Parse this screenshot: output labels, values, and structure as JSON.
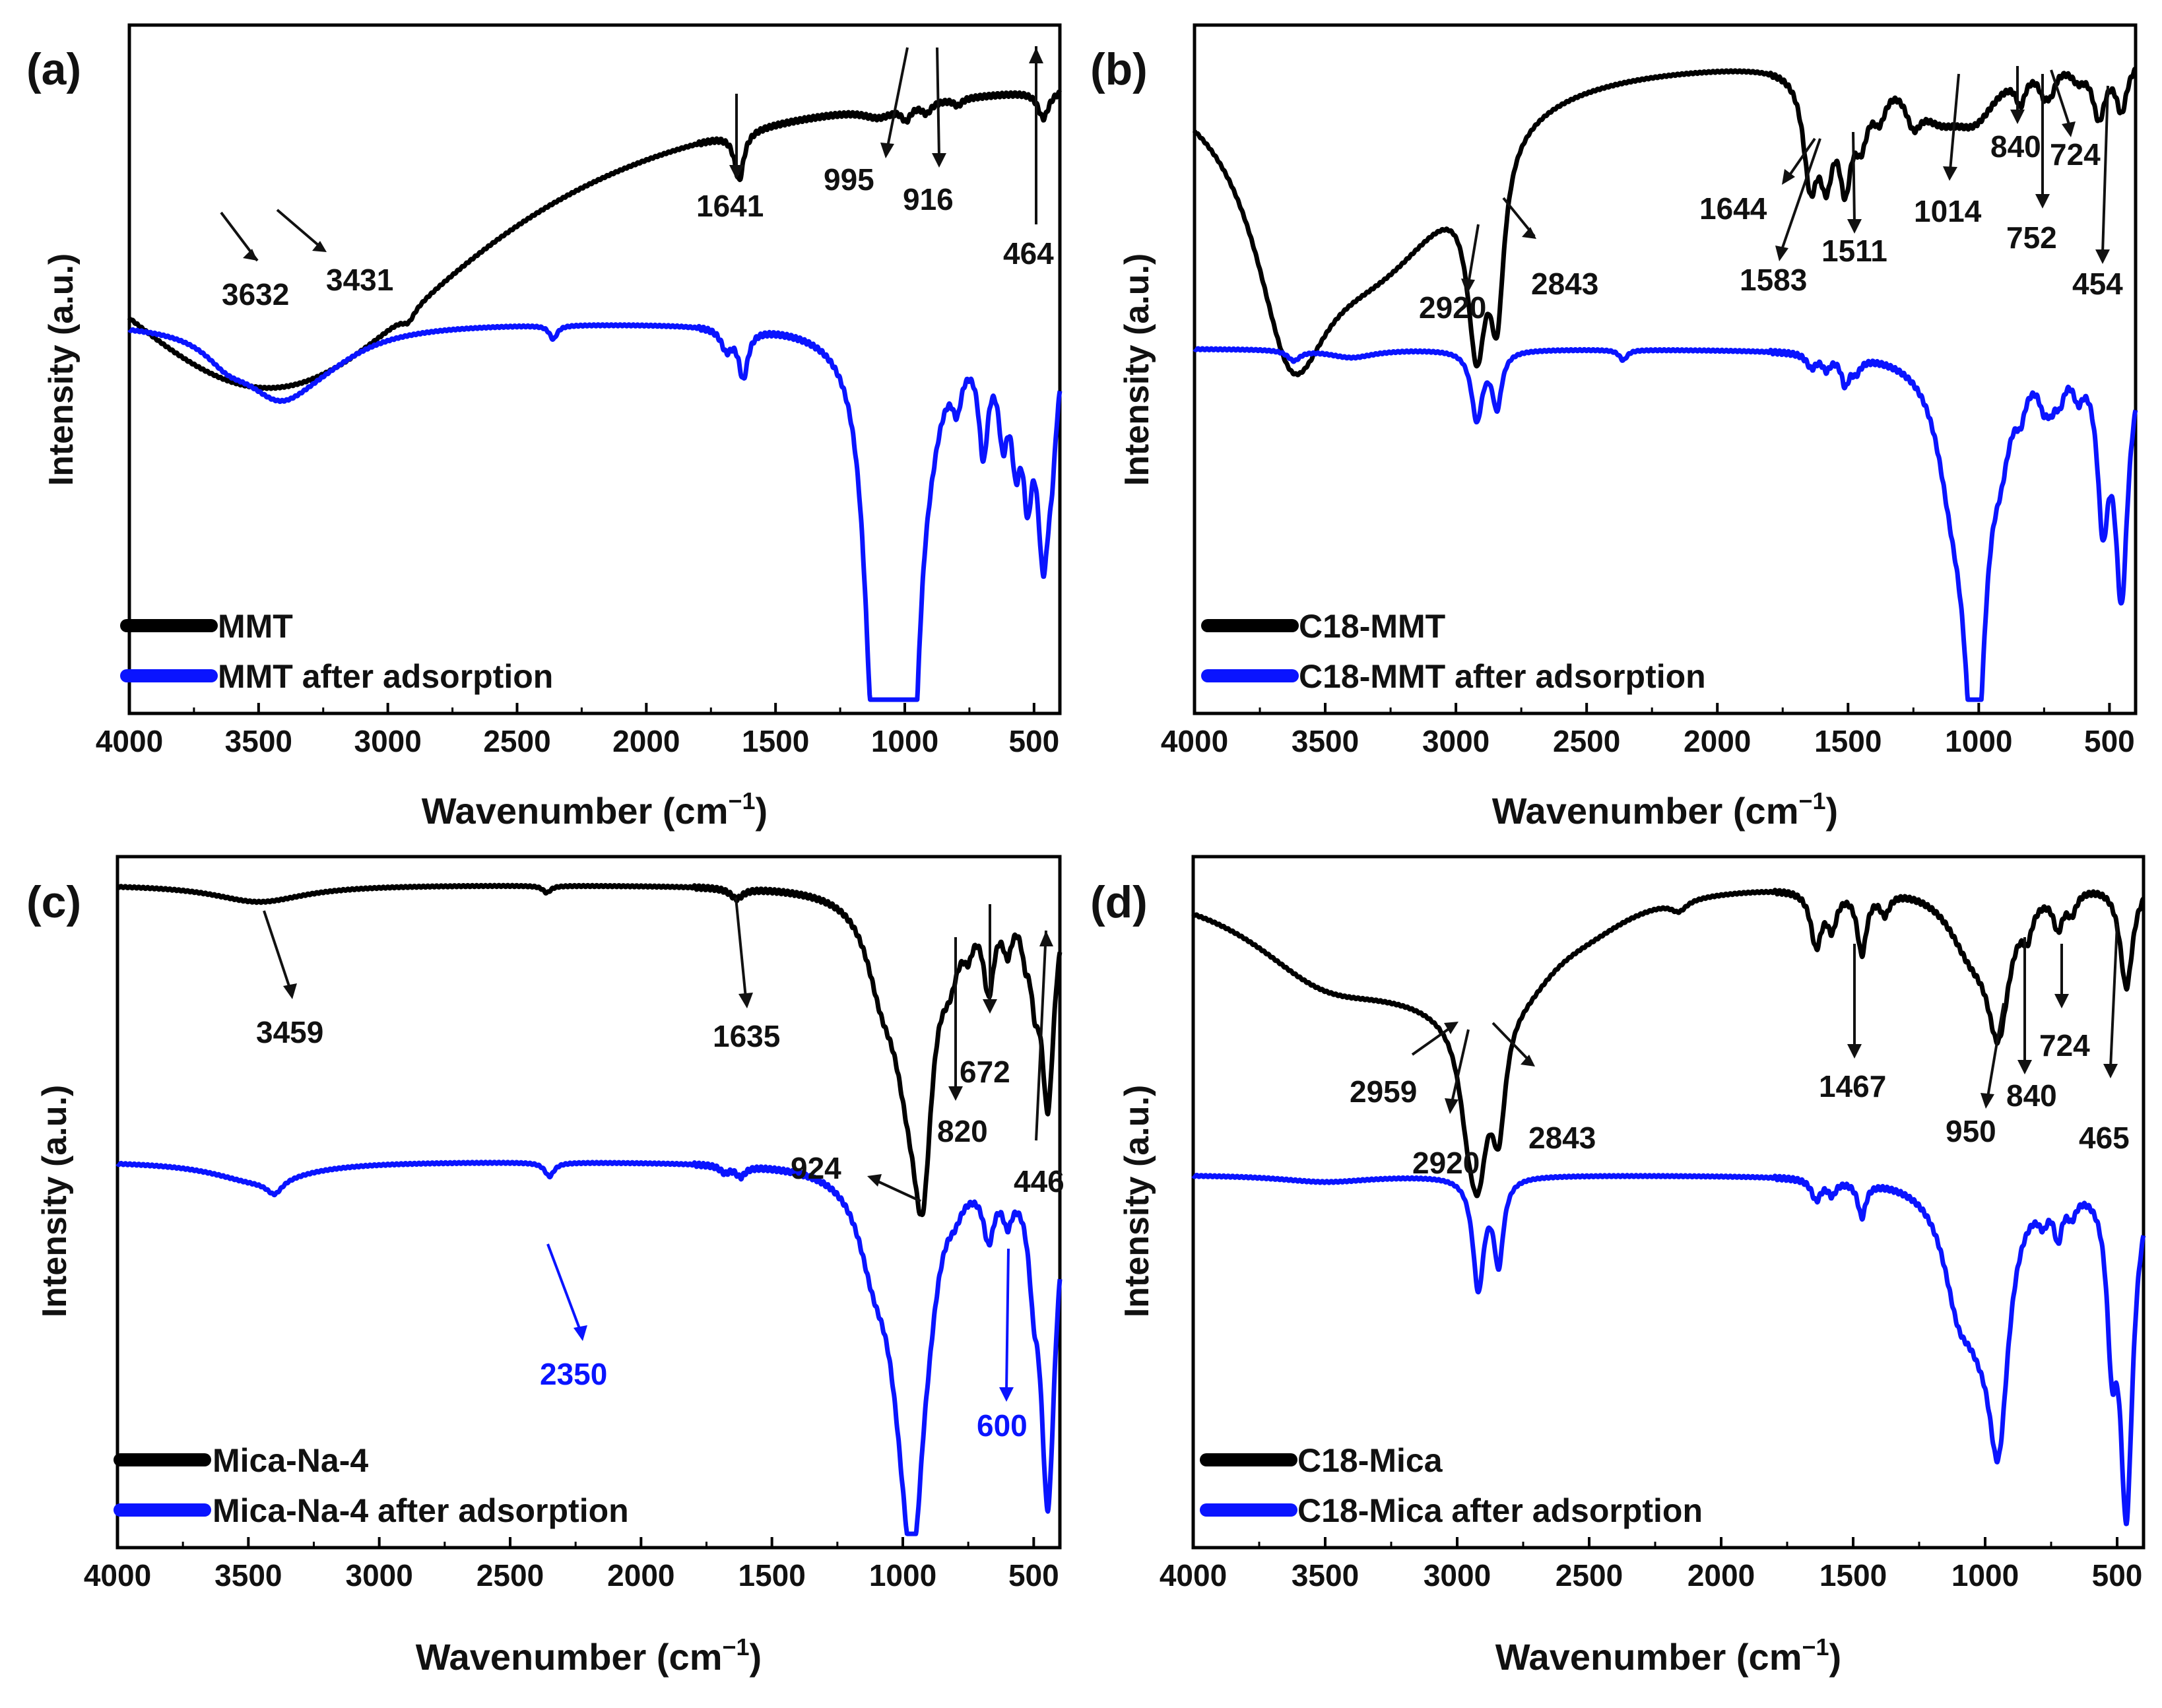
{
  "colors": {
    "before": "#000000",
    "after": "#0a14ff",
    "axis": "#000000"
  },
  "shared": {
    "xlabel": "Wavenumber (cm",
    "xlabel_sup": "−1",
    "xlabel_end": ")",
    "ylabel": "Intensity (a.u.)",
    "xlim": [
      4000,
      400
    ],
    "ticks": [
      "4000",
      "3500",
      "3000",
      "2500",
      "2000",
      "1500",
      "1000",
      "500"
    ]
  },
  "chart_data": [
    {
      "type": "line",
      "panel_label": "(a)",
      "title": "",
      "xlabel": "Wavenumber (cm−1)",
      "ylabel": "Intensity (a.u.)",
      "xlim": [
        4000,
        400
      ],
      "series": [
        {
          "name": "MMT",
          "color": "#000000",
          "baseline": 0.05,
          "bands": [
            [
              3632,
              0.22,
              0.28
            ],
            [
              3431,
              0.17,
              0.28
            ],
            [
              3250,
              0.1,
              0.22
            ],
            [
              2920,
              0.015,
              0.008
            ],
            [
              1641,
              0.07,
              0.006
            ],
            [
              1100,
              0.015,
              0.02
            ],
            [
              995,
              0.02,
              0.006
            ],
            [
              916,
              0.015,
              0.006
            ],
            [
              795,
              0.01,
              0.005
            ],
            [
              464,
              0.04,
              0.007
            ]
          ]
        },
        {
          "name": "MMT after adsorption",
          "color": "#0a14ff",
          "baseline": 0.43,
          "bands": [
            [
              3620,
              0.03,
              0.03
            ],
            [
              3420,
              0.09,
              0.05
            ],
            [
              3250,
              0.03,
              0.06
            ],
            [
              2360,
              0.02,
              0.005
            ],
            [
              1690,
              0.03,
              0.007
            ],
            [
              1625,
              0.07,
              0.006
            ],
            [
              1120,
              0.48,
              0.012
            ],
            [
              1030,
              0.5,
              0.012
            ],
            [
              985,
              0.6,
              0.012
            ],
            [
              900,
              0.05,
              0.015
            ],
            [
              798,
              0.06,
              0.006
            ],
            [
              696,
              0.15,
              0.006
            ],
            [
              620,
              0.12,
              0.006
            ],
            [
              570,
              0.14,
              0.006
            ],
            [
              525,
              0.18,
              0.006
            ],
            [
              464,
              0.3,
              0.008
            ],
            [
              430,
              0.1,
              0.006
            ]
          ]
        }
      ],
      "annotations": [
        "3632",
        "3431",
        "1641",
        "995",
        "916",
        "464"
      ],
      "legend": {
        "position": "bottom-left"
      }
    },
    {
      "type": "line",
      "panel_label": "(b)",
      "title": "",
      "xlabel": "Wavenumber (cm−1)",
      "ylabel": "Intensity (a.u.)",
      "xlim": [
        4000,
        400
      ],
      "series": [
        {
          "name": "C18-MMT",
          "color": "#000000",
          "baseline": 0.04,
          "bands": [
            [
              3632,
              0.28,
              0.045
            ],
            [
              3440,
              0.17,
              0.1
            ],
            [
              3250,
              0.1,
              0.08
            ],
            [
              3050,
              0.06,
              0.08
            ],
            [
              2920,
              0.26,
              0.012
            ],
            [
              2843,
              0.22,
              0.009
            ],
            [
              1644,
              0.15,
              0.009
            ],
            [
              1583,
              0.13,
              0.009
            ],
            [
              1511,
              0.14,
              0.008
            ],
            [
              1450,
              0.08,
              0.009
            ],
            [
              1380,
              0.05,
              0.009
            ],
            [
              1250,
              0.05,
              0.01
            ],
            [
              1150,
              0.06,
              0.03
            ],
            [
              1014,
              0.07,
              0.03
            ],
            [
              840,
              0.04,
              0.006
            ],
            [
              752,
              0.03,
              0.006
            ],
            [
              724,
              0.03,
              0.006
            ],
            [
              620,
              0.02,
              0.008
            ],
            [
              540,
              0.08,
              0.008
            ],
            [
              454,
              0.07,
              0.007
            ]
          ]
        },
        {
          "name": "C18-MMT after adsorption",
          "color": "#0a14ff",
          "baseline": 0.47,
          "bands": [
            [
              3620,
              0.015,
              0.008
            ],
            [
              3400,
              0.012,
              0.03
            ],
            [
              2920,
              0.1,
              0.007
            ],
            [
              2843,
              0.08,
              0.006
            ],
            [
              2360,
              0.015,
              0.005
            ],
            [
              1640,
              0.02,
              0.006
            ],
            [
              1583,
              0.02,
              0.005
            ],
            [
              1511,
              0.04,
              0.005
            ],
            [
              1470,
              0.02,
              0.006
            ],
            [
              1100,
              0.15,
              0.02
            ],
            [
              1014,
              0.56,
              0.013
            ],
            [
              915,
              0.08,
              0.012
            ],
            [
              840,
              0.04,
              0.006
            ],
            [
              752,
              0.04,
              0.006
            ],
            [
              724,
              0.04,
              0.006
            ],
            [
              690,
              0.04,
              0.006
            ],
            [
              620,
              0.04,
              0.006
            ],
            [
              525,
              0.22,
              0.007
            ],
            [
              454,
              0.34,
              0.008
            ]
          ]
        }
      ],
      "annotations": [
        "2920",
        "2843",
        "1644",
        "1583",
        "1511",
        "1014",
        "840",
        "752",
        "724",
        "454"
      ],
      "legend": {
        "position": "bottom-left"
      }
    },
    {
      "type": "line",
      "panel_label": "(c)",
      "title": "",
      "xlabel": "Wavenumber (cm−1)",
      "ylabel": "Intensity (a.u.)",
      "xlim": [
        4000,
        400
      ],
      "series": [
        {
          "name": "Mica-Na-4",
          "color": "#000000",
          "baseline": 0.04,
          "bands": [
            [
              3459,
              0.025,
              0.06
            ],
            [
              2360,
              0.01,
              0.005
            ],
            [
              1635,
              0.015,
              0.008
            ],
            [
              1080,
              0.1,
              0.02
            ],
            [
              980,
              0.2,
              0.02
            ],
            [
              924,
              0.32,
              0.012
            ],
            [
              820,
              0.07,
              0.012
            ],
            [
              750,
              0.04,
              0.006
            ],
            [
              672,
              0.12,
              0.007
            ],
            [
              600,
              0.06,
              0.006
            ],
            [
              532,
              0.05,
              0.005
            ],
            [
              495,
              0.1,
              0.006
            ],
            [
              446,
              0.3,
              0.008
            ]
          ]
        },
        {
          "name": "Mica-Na-4 after adsorption",
          "color": "#0a14ff",
          "baseline": 0.44,
          "bands": [
            [
              3459,
              0.03,
              0.06
            ],
            [
              3400,
              0.02,
              0.01
            ],
            [
              2350,
              0.02,
              0.006
            ],
            [
              1680,
              0.01,
              0.006
            ],
            [
              1620,
              0.015,
              0.006
            ],
            [
              1110,
              0.1,
              0.02
            ],
            [
              1000,
              0.2,
              0.02
            ],
            [
              960,
              0.38,
              0.014
            ],
            [
              900,
              0.06,
              0.012
            ],
            [
              800,
              0.02,
              0.008
            ],
            [
              672,
              0.08,
              0.007
            ],
            [
              600,
              0.05,
              0.006
            ],
            [
              500,
              0.1,
              0.006
            ],
            [
              446,
              0.48,
              0.009
            ]
          ]
        }
      ],
      "annotations": [
        "3459",
        "1635",
        "924",
        "820",
        "672",
        "446",
        "2350",
        "600"
      ],
      "legend": {
        "position": "bottom-left"
      }
    },
    {
      "type": "line",
      "panel_label": "(d)",
      "title": "",
      "xlabel": "Wavenumber (cm−1)",
      "ylabel": "Intensity (a.u.)",
      "xlim": [
        4000,
        400
      ],
      "series": [
        {
          "name": "C18-Mica",
          "color": "#000000",
          "baseline": 0.03,
          "bands": [
            [
              3500,
              0.12,
              0.1
            ],
            [
              3200,
              0.05,
              0.08
            ],
            [
              3000,
              0.08,
              0.06
            ],
            [
              2959,
              0.1,
              0.012
            ],
            [
              2920,
              0.2,
              0.012
            ],
            [
              2843,
              0.16,
              0.009
            ],
            [
              2750,
              0.08,
              0.05
            ],
            [
              2500,
              0.03,
              0.06
            ],
            [
              2160,
              0.015,
              0.01
            ],
            [
              1640,
              0.08,
              0.007
            ],
            [
              1580,
              0.05,
              0.006
            ],
            [
              1467,
              0.09,
              0.006
            ],
            [
              1380,
              0.03,
              0.006
            ],
            [
              1050,
              0.09,
              0.03
            ],
            [
              950,
              0.18,
              0.014
            ],
            [
              840,
              0.04,
              0.006
            ],
            [
              724,
              0.05,
              0.006
            ],
            [
              672,
              0.03,
              0.006
            ],
            [
              465,
              0.15,
              0.008
            ]
          ]
        },
        {
          "name": "C18-Mica after adsorption",
          "color": "#0a14ff",
          "baseline": 0.46,
          "bands": [
            [
              3500,
              0.01,
              0.06
            ],
            [
              2920,
              0.16,
              0.007
            ],
            [
              2843,
              0.12,
              0.006
            ],
            [
              1640,
              0.03,
              0.006
            ],
            [
              1580,
              0.02,
              0.005
            ],
            [
              1467,
              0.05,
              0.005
            ],
            [
              1100,
              0.14,
              0.02
            ],
            [
              1020,
              0.12,
              0.02
            ],
            [
              950,
              0.32,
              0.013
            ],
            [
              780,
              0.03,
              0.006
            ],
            [
              724,
              0.06,
              0.005
            ],
            [
              672,
              0.03,
              0.006
            ],
            [
              520,
              0.2,
              0.006
            ],
            [
              465,
              0.47,
              0.008
            ]
          ]
        }
      ],
      "annotations": [
        "2959",
        "2920",
        "2843",
        "1467",
        "950",
        "840",
        "724",
        "465"
      ],
      "legend": {
        "position": "bottom-left"
      }
    }
  ]
}
